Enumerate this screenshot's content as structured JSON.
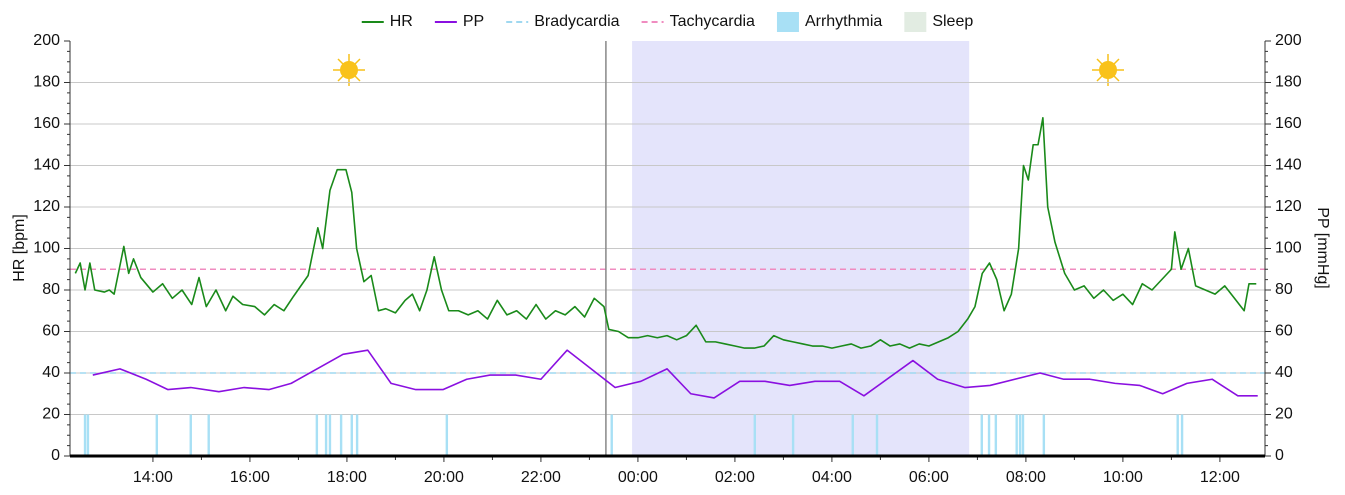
{
  "chart_data": {
    "type": "line",
    "y_label": "HR [bpm]",
    "y2_label": "PP [mmHg]",
    "xlim": [
      12.29,
      36.93
    ],
    "xticks": [
      {
        "value": 14,
        "label": "14:00"
      },
      {
        "value": 16,
        "label": "16:00"
      },
      {
        "value": 18,
        "label": "18:00"
      },
      {
        "value": 20,
        "label": "20:00"
      },
      {
        "value": 22,
        "label": "22:00"
      },
      {
        "value": 24,
        "label": "00:00"
      },
      {
        "value": 26,
        "label": "02:00"
      },
      {
        "value": 28,
        "label": "04:00"
      },
      {
        "value": 30,
        "label": "06:00"
      },
      {
        "value": 32,
        "label": "08:00"
      },
      {
        "value": 34,
        "label": "10:00"
      },
      {
        "value": 36,
        "label": "12:00"
      }
    ],
    "ylim": [
      0,
      200
    ],
    "yticks": [
      0,
      20,
      40,
      60,
      80,
      100,
      120,
      140,
      160,
      180,
      200
    ],
    "y2lim": [
      0,
      200
    ],
    "y2ticks": [
      0,
      20,
      40,
      60,
      80,
      100,
      120,
      140,
      160,
      180,
      200
    ],
    "grid": true,
    "legend": "top",
    "series": [
      {
        "name": "HR",
        "color": "#1a8a1a",
        "x": [
          12.4,
          12.5,
          12.6,
          12.7,
          12.8,
          13.0,
          13.1,
          13.2,
          13.4,
          13.5,
          13.6,
          13.75,
          14.0,
          14.2,
          14.4,
          14.6,
          14.8,
          14.95,
          15.1,
          15.3,
          15.5,
          15.65,
          15.85,
          16.1,
          16.3,
          16.5,
          16.7,
          16.9,
          17.2,
          17.4,
          17.5,
          17.65,
          17.8,
          17.98,
          18.1,
          18.2,
          18.35,
          18.5,
          18.65,
          18.8,
          19.0,
          19.2,
          19.35,
          19.5,
          19.65,
          19.8,
          19.95,
          20.1,
          20.3,
          20.5,
          20.7,
          20.9,
          21.1,
          21.3,
          21.5,
          21.7,
          21.9,
          22.1,
          22.3,
          22.5,
          22.7,
          22.9,
          23.1,
          23.3,
          23.4,
          23.6,
          23.8,
          24.0,
          24.2,
          24.4,
          24.6,
          24.8,
          25.0,
          25.2,
          25.4,
          25.6,
          25.8,
          26.0,
          26.2,
          26.4,
          26.6,
          26.8,
          27.0,
          27.2,
          27.4,
          27.6,
          27.8,
          28.0,
          28.2,
          28.4,
          28.6,
          28.8,
          29.0,
          29.2,
          29.4,
          29.6,
          29.8,
          30.0,
          30.2,
          30.4,
          30.6,
          30.8,
          30.95,
          31.1,
          31.25,
          31.4,
          31.55,
          31.7,
          31.85,
          31.95,
          32.05,
          32.15,
          32.25,
          32.35,
          32.45,
          32.6,
          32.8,
          33.0,
          33.2,
          33.4,
          33.6,
          33.8,
          34.0,
          34.2,
          34.4,
          34.6,
          34.8,
          35.0,
          35.07,
          35.2,
          35.35,
          35.5,
          35.7,
          35.9,
          36.1,
          36.3,
          36.5,
          36.6,
          36.75
        ],
        "values": [
          88,
          93,
          80,
          93,
          80,
          79,
          80,
          78,
          101,
          88,
          95,
          86,
          79,
          83,
          76,
          80,
          73,
          86,
          72,
          80,
          70,
          77,
          73,
          72,
          68,
          73,
          70,
          77,
          87,
          110,
          100,
          128,
          138,
          138,
          127,
          100,
          84,
          87,
          70,
          71,
          69,
          75,
          78,
          70,
          80,
          96,
          80,
          70,
          70,
          68,
          70,
          66,
          75,
          68,
          70,
          66,
          73,
          66,
          70,
          68,
          72,
          67,
          76,
          72,
          61,
          60,
          57,
          57,
          58,
          57,
          58,
          56,
          58,
          63,
          55,
          55,
          54,
          53,
          52,
          52,
          53,
          58,
          56,
          55,
          54,
          53,
          53,
          52,
          53,
          54,
          52,
          53,
          56,
          53,
          54,
          52,
          54,
          53,
          55,
          57,
          60,
          66,
          72,
          88,
          93,
          85,
          70,
          78,
          100,
          140,
          133,
          150,
          150,
          163,
          120,
          103,
          88,
          80,
          82,
          76,
          80,
          75,
          78,
          73,
          83,
          80,
          85,
          90,
          108,
          90,
          100,
          82,
          80,
          78,
          82,
          76,
          70,
          83,
          83
        ]
      },
      {
        "name": "PP",
        "color": "#8a10e0",
        "axis": "y2",
        "x": [
          12.76,
          13.32,
          13.86,
          14.31,
          14.78,
          15.36,
          15.88,
          16.39,
          16.85,
          17.92,
          18.43,
          18.91,
          19.42,
          19.98,
          20.47,
          20.95,
          21.48,
          22.0,
          22.54,
          23.53,
          24.06,
          24.6,
          25.09,
          25.57,
          26.1,
          26.62,
          27.13,
          27.65,
          28.16,
          28.66,
          29.67,
          30.18,
          30.74,
          31.26,
          32.29,
          32.78,
          33.32,
          33.84,
          34.35,
          34.82,
          35.32,
          35.84,
          36.37,
          36.78
        ],
        "values": [
          39,
          42,
          37,
          32,
          33,
          31,
          33,
          32,
          35,
          49,
          51,
          35,
          32,
          32,
          37,
          39,
          39,
          37,
          51,
          33,
          36,
          42,
          30,
          28,
          36,
          36,
          34,
          36,
          36,
          29,
          46,
          37,
          33,
          34,
          40,
          37,
          37,
          35,
          34,
          30,
          35,
          37,
          29,
          29
        ]
      }
    ],
    "thresholds": [
      {
        "name": "Bradycardia",
        "value": 40,
        "color": "#9fd8f0"
      },
      {
        "name": "Tachycardia",
        "value": 90,
        "color": "#f08cc0"
      }
    ],
    "arrhythmia": {
      "name": "Arrhythmia",
      "color": "#a8e0f5",
      "x": [
        12.6,
        12.66,
        14.08,
        14.78,
        15.15,
        17.38,
        17.57,
        17.65,
        17.88,
        18.1,
        18.21,
        20.06,
        23.46,
        26.41,
        27.2,
        28.43,
        28.93,
        31.09,
        31.24,
        31.38,
        31.81,
        31.88,
        31.94,
        32.37,
        35.13,
        35.22
      ]
    },
    "sleep": {
      "name": "Sleep",
      "color": "#e4e4fb",
      "legend_color": "#e2ece2",
      "start": 23.88,
      "end": 30.83
    },
    "marker_x": 23.34
  }
}
